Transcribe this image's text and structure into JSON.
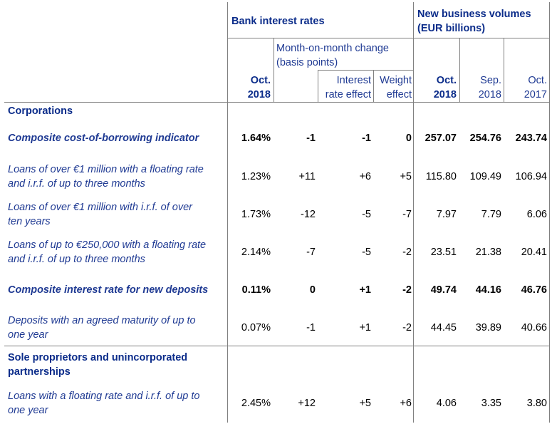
{
  "header": {
    "bank_interest_rates": "Bank interest rates",
    "new_business_volumes_line1": "New business volumes",
    "new_business_volumes_line2": "(EUR billions)",
    "mom_change_line1": "Month-on-month change",
    "mom_change_line2": "(basis points)",
    "interest_rate_effect_line1": "Interest",
    "interest_rate_effect_line2": "rate effect",
    "weight_effect_line1": "Weight",
    "weight_effect_line2": "effect",
    "rate_period_line1": "Oct.",
    "rate_period_line2": "2018",
    "vol_col1_line1": "Oct.",
    "vol_col1_line2": "2018",
    "vol_col2_line1": "Sep.",
    "vol_col2_line2": "2018",
    "vol_col3_line1": "Oct.",
    "vol_col3_line2": "2017"
  },
  "sections": {
    "corporations": "Corporations",
    "sole_line1": "Sole proprietors and unincorporated",
    "sole_line2": "partnerships"
  },
  "rows": [
    {
      "line1": "Composite cost-of-borrowing indicator",
      "line2": "",
      "rate": "1.64%",
      "mom": "-1",
      "ire": "-1",
      "we": "0",
      "v1": "257.07",
      "v2": "254.76",
      "v3": "243.74"
    },
    {
      "line1": "Loans of over €1 million with a floating rate",
      "line2": "and i.r.f. of up to three months",
      "rate": "1.23%",
      "mom": "+11",
      "ire": "+6",
      "we": "+5",
      "v1": "115.80",
      "v2": "109.49",
      "v3": "106.94"
    },
    {
      "line1": "Loans of over €1 million with i.r.f. of over",
      "line2": "ten years",
      "rate": "1.73%",
      "mom": "-12",
      "ire": "-5",
      "we": "-7",
      "v1": "7.97",
      "v2": "7.79",
      "v3": "6.06"
    },
    {
      "line1": "Loans of up to €250,000 with a floating rate",
      "line2": "and i.r.f. of up to three months",
      "rate": "2.14%",
      "mom": "-7",
      "ire": "-5",
      "we": "-2",
      "v1": "23.51",
      "v2": "21.38",
      "v3": "20.41"
    },
    {
      "line1": "Composite interest rate for new deposits",
      "line2": "",
      "rate": "0.11%",
      "mom": "0",
      "ire": "+1",
      "we": "-2",
      "v1": "49.74",
      "v2": "44.16",
      "v3": "46.76"
    },
    {
      "line1": "Deposits with an agreed maturity of up to",
      "line2": "one year",
      "rate": "0.07%",
      "mom": "-1",
      "ire": "+1",
      "we": "-2",
      "v1": "44.45",
      "v2": "39.89",
      "v3": "40.66"
    },
    {
      "line1": "Loans with a floating rate and i.r.f. of up to",
      "line2": "one year",
      "rate": "2.45%",
      "mom": "+12",
      "ire": "+5",
      "we": "+6",
      "v1": "4.06",
      "v2": "3.35",
      "v3": "3.80"
    }
  ]
}
